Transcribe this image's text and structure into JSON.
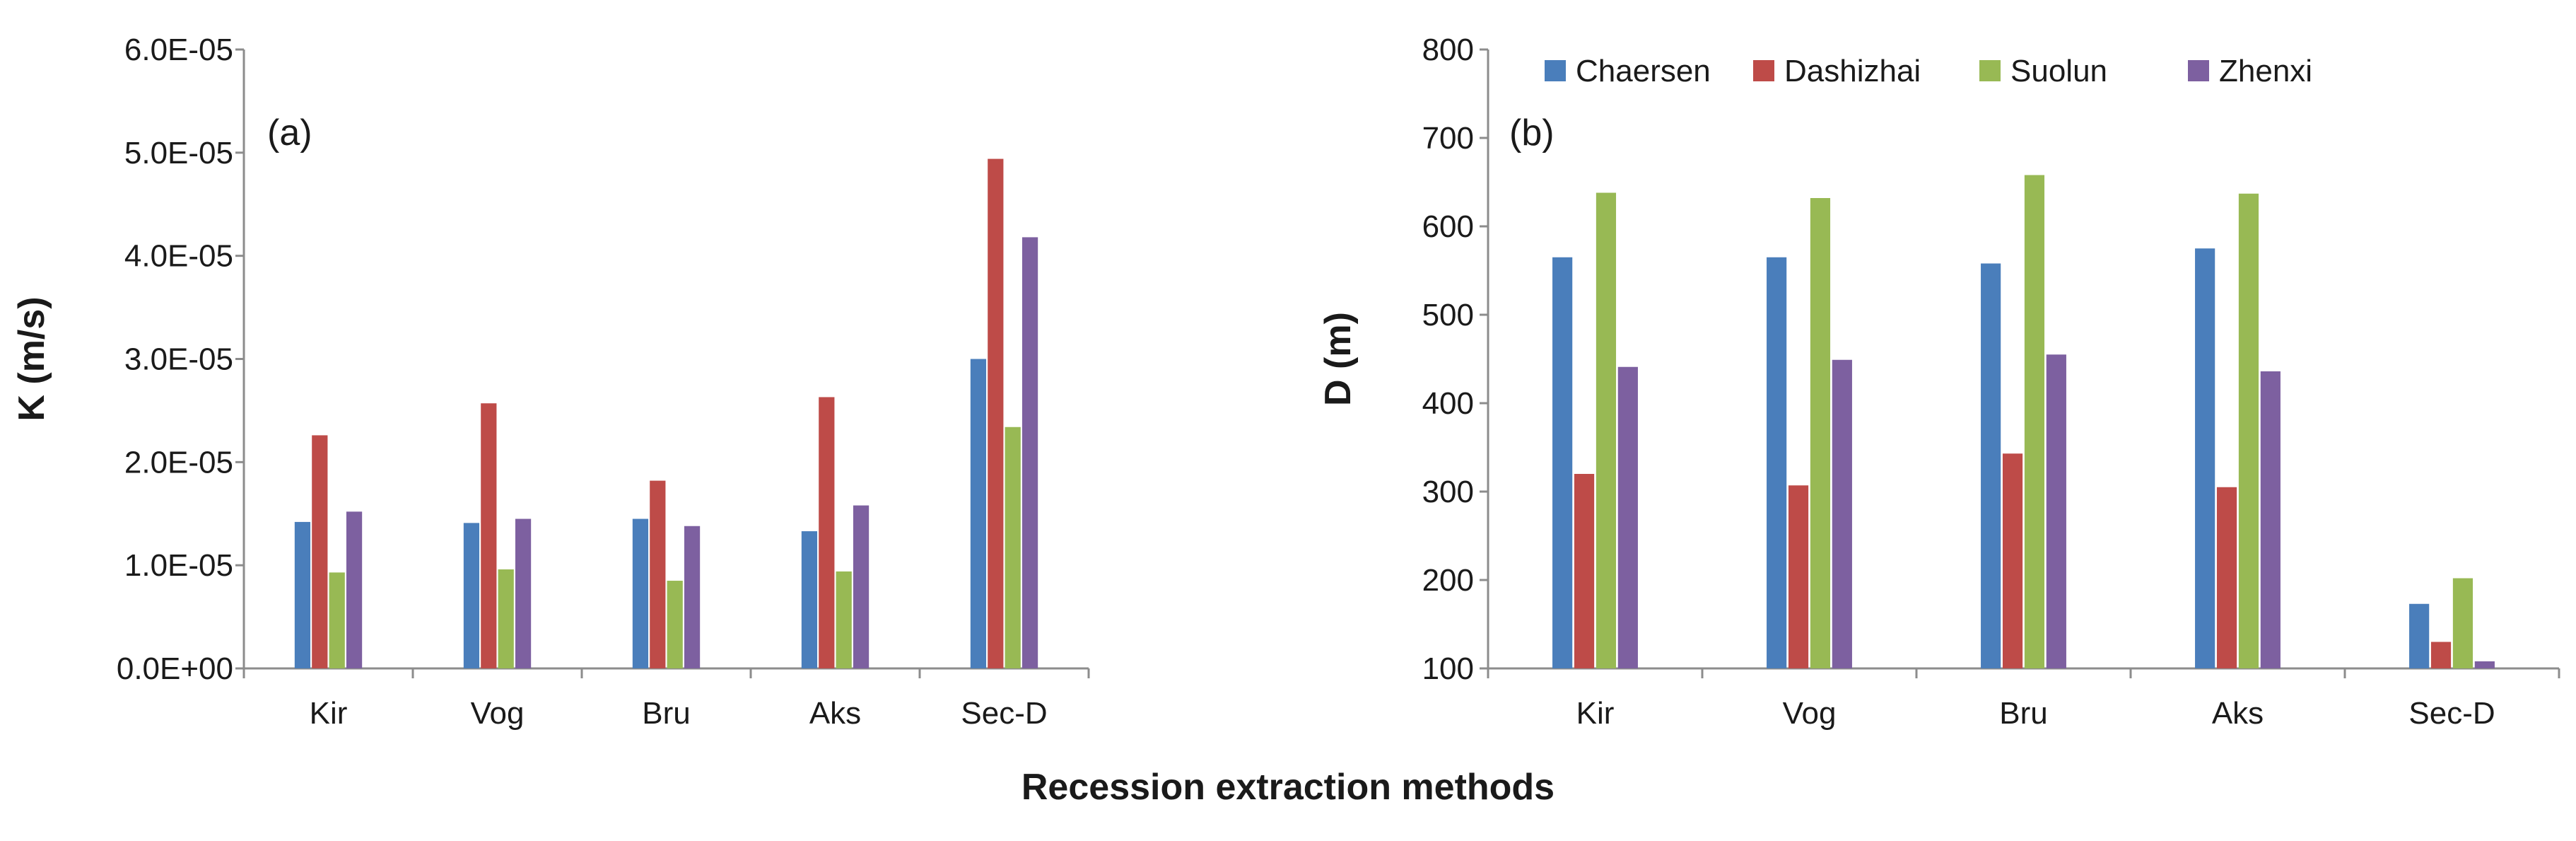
{
  "shared_xlabel": "Recession extraction methods",
  "colors": {
    "Chaersen": "#4a7ebb",
    "Dashizhai": "#be4b48",
    "Suolun": "#98b954",
    "Zhenxi": "#7d60a0"
  },
  "chart_data": [
    {
      "type": "bar",
      "panel": "(a)",
      "ylabel": "K (m/s)",
      "xlabel": "Recession extraction methods",
      "categories": [
        "Kir",
        "Vog",
        "Bru",
        "Aks",
        "Sec-D"
      ],
      "ylim": [
        0,
        6e-05
      ],
      "yticks": [
        0,
        1e-05,
        2e-05,
        3e-05,
        4e-05,
        5e-05,
        6e-05
      ],
      "ytick_labels": [
        "0.0E+00",
        "1.0E-05",
        "2.0E-05",
        "3.0E-05",
        "4.0E-05",
        "5.0E-05",
        "6.0E-05"
      ],
      "legend": false,
      "series": [
        {
          "name": "Chaersen",
          "values": [
            1.42e-05,
            1.41e-05,
            1.45e-05,
            1.33e-05,
            3e-05
          ]
        },
        {
          "name": "Dashizhai",
          "values": [
            2.26e-05,
            2.57e-05,
            1.82e-05,
            2.63e-05,
            4.94e-05
          ]
        },
        {
          "name": "Suolun",
          "values": [
            9.3e-06,
            9.6e-06,
            8.5e-06,
            9.4e-06,
            2.34e-05
          ]
        },
        {
          "name": "Zhenxi",
          "values": [
            1.52e-05,
            1.45e-05,
            1.38e-05,
            1.58e-05,
            4.18e-05
          ]
        }
      ]
    },
    {
      "type": "bar",
      "panel": "(b)",
      "ylabel": "D (m)",
      "xlabel": "Recession extraction methods",
      "categories": [
        "Kir",
        "Vog",
        "Bru",
        "Aks",
        "Sec-D"
      ],
      "ylim": [
        100,
        800
      ],
      "yticks": [
        100,
        200,
        300,
        400,
        500,
        600,
        700,
        800
      ],
      "ytick_labels": [
        "100",
        "200",
        "300",
        "400",
        "500",
        "600",
        "700",
        "800"
      ],
      "legend": true,
      "legend_position": "top",
      "series": [
        {
          "name": "Chaersen",
          "values": [
            565,
            565,
            558,
            575,
            173
          ]
        },
        {
          "name": "Dashizhai",
          "values": [
            320,
            307,
            343,
            305,
            130
          ]
        },
        {
          "name": "Suolun",
          "values": [
            638,
            632,
            658,
            637,
            202
          ]
        },
        {
          "name": "Zhenxi",
          "values": [
            441,
            449,
            455,
            436,
            108
          ]
        }
      ]
    }
  ]
}
